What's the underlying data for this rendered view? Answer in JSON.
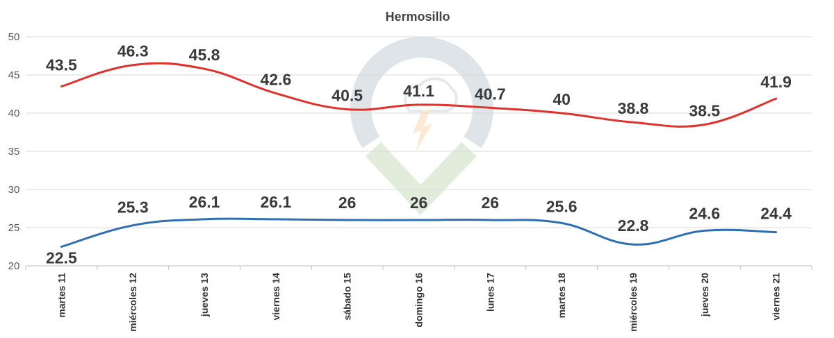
{
  "chart_data": {
    "type": "line",
    "title": "Hermosillo",
    "categories": [
      "martes 11",
      "miércoles 12",
      "jueves 13",
      "viernes 14",
      "sábado 15",
      "domingo 16",
      "lunes 17",
      "martes 18",
      "miércoles 19",
      "jueves 20",
      "viernes 21"
    ],
    "series": [
      {
        "key": "max",
        "color": "#e0312a",
        "values": [
          43.5,
          46.3,
          45.8,
          42.6,
          40.5,
          41.1,
          40.7,
          40,
          38.8,
          38.5,
          41.9
        ]
      },
      {
        "key": "min",
        "color": "#2e6fb3",
        "values": [
          22.5,
          25.3,
          26.1,
          26.1,
          26,
          26,
          26,
          25.6,
          22.8,
          24.6,
          24.4
        ]
      }
    ],
    "ylim": [
      20,
      50
    ],
    "yticks": [
      20,
      25,
      30,
      35,
      40,
      45,
      50
    ],
    "grid": "horizontal",
    "data_labels": true,
    "legend": "none"
  }
}
